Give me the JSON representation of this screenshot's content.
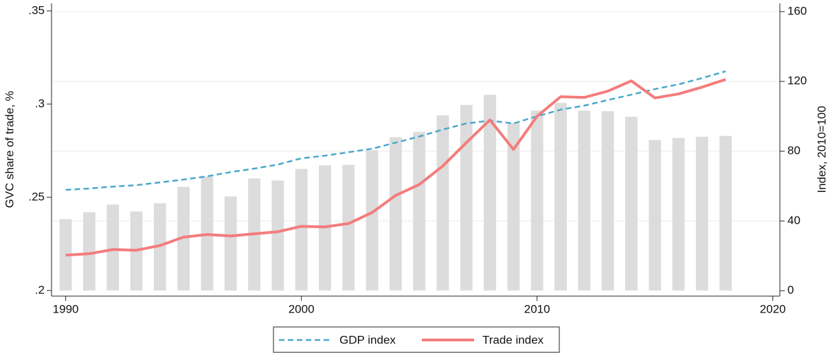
{
  "chart_data": {
    "type": "combo",
    "y_label": "GVC share of trade, %",
    "y2_label": "Index, 2010=100",
    "x": [
      1990,
      1991,
      1992,
      1993,
      1994,
      1995,
      1996,
      1997,
      1998,
      1999,
      2000,
      2001,
      2002,
      2003,
      2004,
      2005,
      2006,
      2007,
      2008,
      2009,
      2010,
      2011,
      2012,
      2013,
      2014,
      2015,
      2016,
      2017,
      2018
    ],
    "xlim": [
      1989.4,
      2020.3
    ],
    "xticks": [
      1990,
      2000,
      2010,
      2020
    ],
    "ylim": [
      0.197,
      0.354
    ],
    "yticks": [
      {
        "value": 0.2,
        "label": ".2"
      },
      {
        "value": 0.25,
        "label": ".25"
      },
      {
        "value": 0.3,
        "label": ".3"
      },
      {
        "value": 0.35,
        "label": ".35"
      }
    ],
    "y2lim": [
      -3.1,
      164.7
    ],
    "y2ticks": [
      0,
      40,
      80,
      120,
      160
    ],
    "grid": true,
    "legend": "bottom",
    "series": [
      {
        "type": "bar",
        "color": "#dcdcdc",
        "values": [
          0.2383,
          0.242,
          0.2461,
          0.2424,
          0.2468,
          0.2556,
          0.2612,
          0.2505,
          0.2601,
          0.259,
          0.2652,
          0.2671,
          0.2674,
          0.2752,
          0.2822,
          0.2851,
          0.294,
          0.2995,
          0.305,
          0.2899,
          0.2965,
          0.3006,
          0.2965,
          0.2962,
          0.2932,
          0.2807,
          0.2818,
          0.2825,
          0.2829
        ]
      },
      {
        "type": "line",
        "name": "GDP index",
        "color": "#4aa8c9",
        "dashed": true,
        "axis": "y2",
        "values": [
          57.8,
          58.6,
          59.7,
          60.5,
          62.1,
          63.7,
          65.6,
          68,
          70,
          72.3,
          75.9,
          77.4,
          79.4,
          81.4,
          84.9,
          88.4,
          92.4,
          95.9,
          97.5,
          95.9,
          100,
          103.8,
          106.1,
          109.3,
          112.4,
          115.6,
          118.3,
          121.9,
          125.8
        ]
      },
      {
        "type": "line",
        "name": "Trade index",
        "color": "#f47c7c",
        "dashed": false,
        "axis": "y2",
        "values": [
          20.4,
          21.2,
          23.6,
          23.2,
          25.9,
          30.7,
          32.2,
          31.4,
          32.6,
          33.8,
          36.9,
          36.6,
          38.5,
          44.8,
          54.6,
          60.9,
          71.5,
          84.9,
          97.9,
          81,
          100,
          111.2,
          110.8,
          114.4,
          120.3,
          110.5,
          112.8,
          116.7,
          121.1
        ]
      }
    ]
  }
}
